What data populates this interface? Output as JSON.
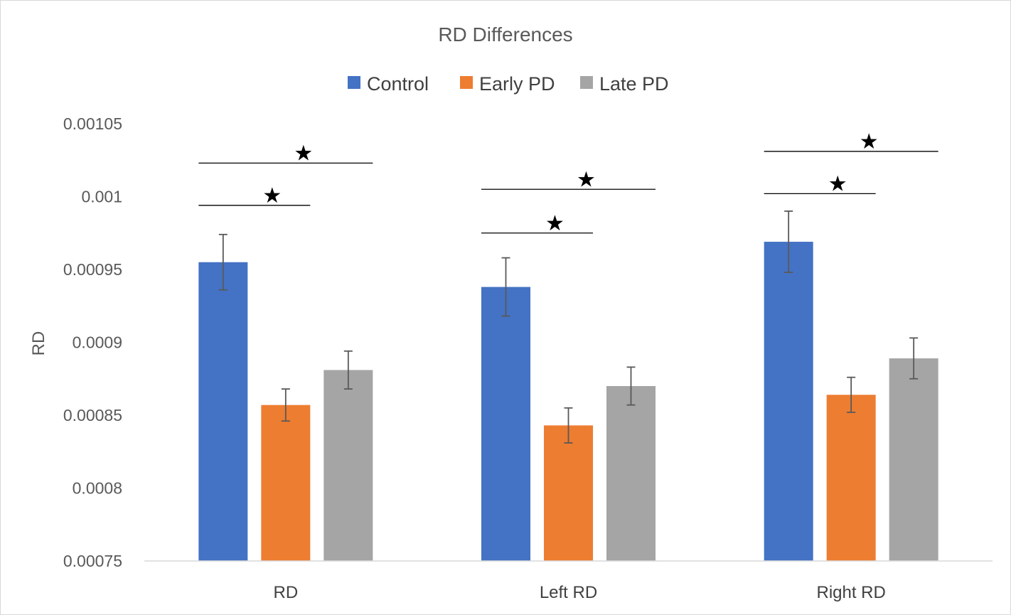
{
  "chart_data": {
    "type": "bar",
    "title": "RD Differences",
    "xlabel": "",
    "ylabel": "RD",
    "categories": [
      "RD",
      "Left RD",
      "Right RD"
    ],
    "ylim": [
      0.00075,
      0.00105
    ],
    "yticks": [
      0.00105,
      0.001,
      0.00095,
      0.0009,
      0.00085,
      0.0008,
      0.00075
    ],
    "ytick_labels": [
      "0.00105",
      "0.001",
      "0.00095",
      "0.0009",
      "0.00085",
      "0.0008",
      "0.00075"
    ],
    "legend_position": "top-center",
    "grid": false,
    "series": [
      {
        "name": "Control",
        "color": "#4472C4",
        "values": [
          0.000955,
          0.000938,
          0.000969
        ],
        "errors": [
          1.9e-05,
          2e-05,
          2.1e-05
        ]
      },
      {
        "name": "Early PD",
        "color": "#ED7D31",
        "values": [
          0.000857,
          0.000843,
          0.000864
        ],
        "errors": [
          1.1e-05,
          1.2e-05,
          1.2e-05
        ]
      },
      {
        "name": "Late PD",
        "color": "#A5A5A5",
        "values": [
          0.000881,
          0.00087,
          0.000889
        ],
        "errors": [
          1.3e-05,
          1.3e-05,
          1.4e-05
        ]
      }
    ],
    "annotations": [
      {
        "category": 0,
        "from_series": 0,
        "to_series": 1,
        "line_y": 0.000994,
        "symbol": "★"
      },
      {
        "category": 0,
        "from_series": 0,
        "to_series": 2,
        "line_y": 0.001023,
        "symbol": "★"
      },
      {
        "category": 1,
        "from_series": 0,
        "to_series": 1,
        "line_y": 0.000975,
        "symbol": "★"
      },
      {
        "category": 1,
        "from_series": 0,
        "to_series": 2,
        "line_y": 0.001005,
        "symbol": "★"
      },
      {
        "category": 2,
        "from_series": 0,
        "to_series": 1,
        "line_y": 0.001002,
        "symbol": "★"
      },
      {
        "category": 2,
        "from_series": 0,
        "to_series": 2,
        "line_y": 0.001031,
        "symbol": "★"
      }
    ]
  }
}
